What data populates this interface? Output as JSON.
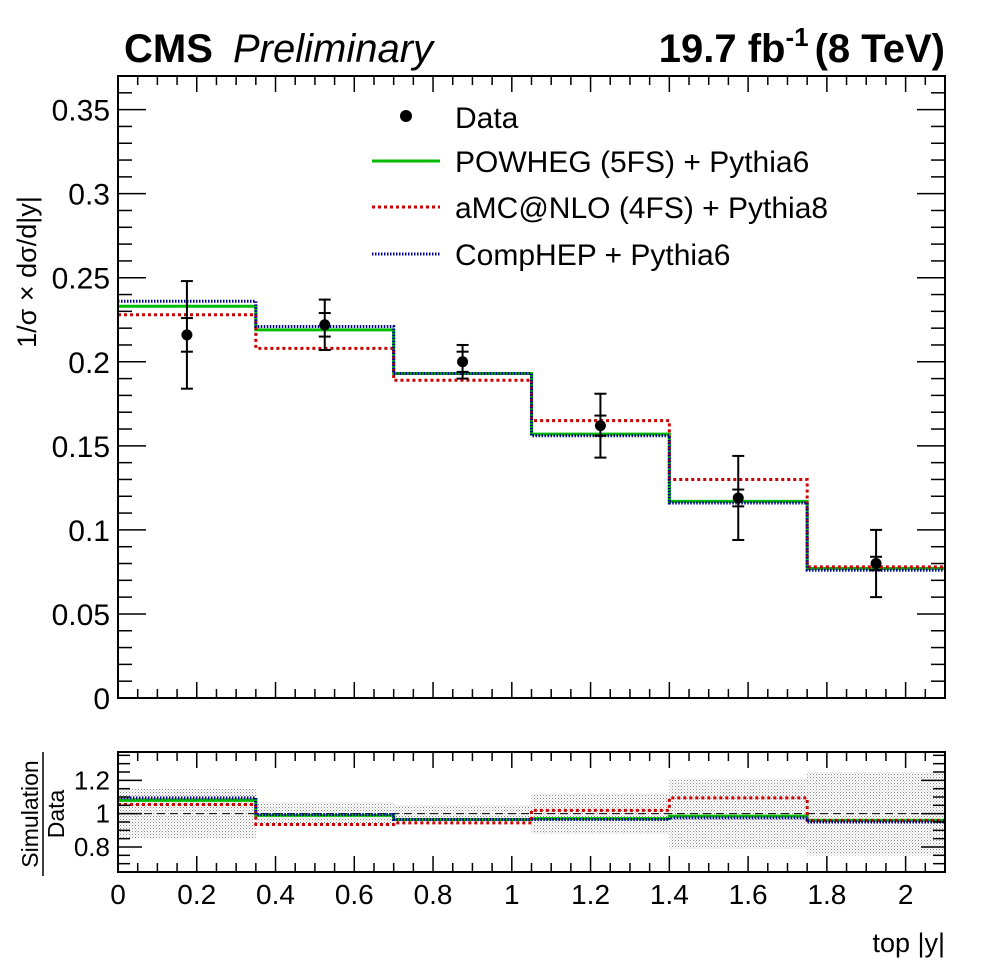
{
  "header": {
    "experiment": "CMS",
    "status": "Preliminary",
    "lumi_value": "19.7 fb",
    "lumi_exp": "-1",
    "energy": "(8 TeV)"
  },
  "chart_data": [
    {
      "type": "line",
      "panel": "main",
      "ylabel": "1/σ × dσ/d|y|",
      "xlabel": "top |y|",
      "ylim": [
        0,
        0.37
      ],
      "xlim": [
        0,
        2.1
      ],
      "yticks": [
        0,
        0.05,
        0.1,
        0.15,
        0.2,
        0.25,
        0.3,
        0.35
      ],
      "ytick_labels": [
        "0",
        "0.05",
        "0.1",
        "0.15",
        "0.2",
        "0.25",
        "0.3",
        "0.35"
      ],
      "bin_edges": [
        0,
        0.35,
        0.7,
        1.05,
        1.4,
        1.75,
        2.1
      ],
      "legend": {
        "position": "top-center",
        "entries": [
          "Data",
          "POWHEG (5FS) + Pythia6",
          "aMC@NLO (4FS) + Pythia8",
          "CompHEP + Pythia6"
        ]
      },
      "data": {
        "name": "Data",
        "x": [
          0.175,
          0.525,
          0.875,
          1.225,
          1.575,
          1.925
        ],
        "y": [
          0.216,
          0.222,
          0.2,
          0.162,
          0.119,
          0.08
        ],
        "stat_err": [
          0.01,
          0.007,
          0.006,
          0.006,
          0.005,
          0.004
        ],
        "total_err": [
          0.032,
          0.015,
          0.01,
          0.019,
          0.025,
          0.02
        ]
      },
      "series": [
        {
          "name": "POWHEG (5FS) + Pythia6",
          "color": "#00bb00",
          "style": "solid",
          "values": [
            0.233,
            0.219,
            0.193,
            0.157,
            0.117,
            0.077
          ]
        },
        {
          "name": "aMC@NLO (4FS) + Pythia8",
          "color": "#cc0000",
          "style": "dotted",
          "values": [
            0.228,
            0.208,
            0.189,
            0.165,
            0.13,
            0.078
          ]
        },
        {
          "name": "CompHEP + Pythia6",
          "color": "#000099",
          "style": "fine-dotted",
          "values": [
            0.236,
            0.221,
            0.193,
            0.156,
            0.116,
            0.076
          ]
        }
      ]
    },
    {
      "type": "line",
      "panel": "ratio",
      "ylabel_num": "Simulation",
      "ylabel_den": "Data",
      "xlabel": "top |y|",
      "ylim": [
        0.65,
        1.37
      ],
      "xlim": [
        0,
        2.1
      ],
      "yticks": [
        0.8,
        1,
        1.2
      ],
      "ytick_labels": [
        "0.8",
        "1",
        "1.2"
      ],
      "xticks": [
        0,
        0.2,
        0.4,
        0.6,
        0.8,
        1,
        1.2,
        1.4,
        1.6,
        1.8,
        2
      ],
      "xtick_labels": [
        "0",
        "0.2",
        "0.4",
        "0.6",
        "0.8",
        "1",
        "1.2",
        "1.4",
        "1.6",
        "1.8",
        "2"
      ],
      "bin_edges": [
        0,
        0.35,
        0.7,
        1.05,
        1.4,
        1.75,
        2.1
      ],
      "uncertainty_band": [
        0.15,
        0.07,
        0.05,
        0.12,
        0.21,
        0.25
      ],
      "series": [
        {
          "name": "POWHEG (5FS) + Pythia6",
          "color": "#00bb00",
          "style": "solid",
          "values": [
            1.08,
            0.99,
            0.965,
            0.97,
            0.985,
            0.96
          ]
        },
        {
          "name": "aMC@NLO (4FS) + Pythia8",
          "color": "#cc0000",
          "style": "dotted",
          "values": [
            1.055,
            0.935,
            0.945,
            1.02,
            1.095,
            0.96
          ]
        },
        {
          "name": "CompHEP + Pythia6",
          "color": "#000099",
          "style": "fine-dotted",
          "values": [
            1.095,
            0.995,
            0.965,
            0.965,
            0.975,
            0.95
          ]
        }
      ]
    }
  ]
}
